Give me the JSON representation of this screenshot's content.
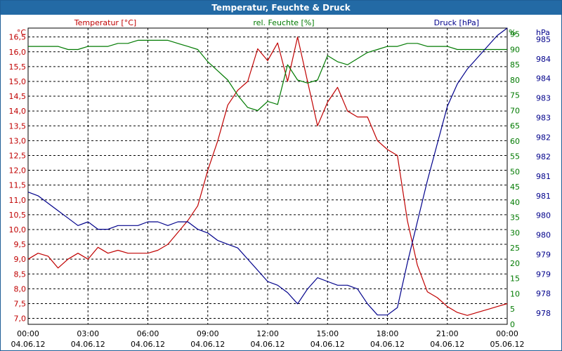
{
  "window": {
    "title": "Temperatur, Feuchte & Druck"
  },
  "colors": {
    "temperature": "#c00000",
    "humidity": "#007a00",
    "pressure": "#00008b",
    "titlebar": "#236aa5"
  },
  "chart_data": {
    "type": "line",
    "title": "Temperatur, Feuchte & Druck",
    "legend": [
      "Temperatur [°C]",
      "rel. Feuchte [%]",
      "Druck [hPa]"
    ],
    "x_ticks": [
      {
        "time": "00:00",
        "date": "04.06.12"
      },
      {
        "time": "03:00",
        "date": "04.06.12"
      },
      {
        "time": "06:00",
        "date": "04.06.12"
      },
      {
        "time": "09:00",
        "date": "04.06.12"
      },
      {
        "time": "12:00",
        "date": "04.06.12"
      },
      {
        "time": "15:00",
        "date": "04.06.12"
      },
      {
        "time": "18:00",
        "date": "04.06.12"
      },
      {
        "time": "21:00",
        "date": "04.06.12"
      },
      {
        "time": "00:00",
        "date": "05.06.12"
      }
    ],
    "x_range_hours": [
      0,
      24
    ],
    "axes": {
      "temperature": {
        "unit": "°C",
        "range": [
          6.8,
          16.8
        ],
        "ticks": [
          "7,0",
          "7,5",
          "8,0",
          "8,5",
          "9,0",
          "9,5",
          "10,0",
          "10,5",
          "11,0",
          "11,5",
          "12,0",
          "12,5",
          "13,0",
          "13,5",
          "14,0",
          "14,5",
          "15,0",
          "15,5",
          "16,0",
          "16,5"
        ]
      },
      "humidity": {
        "unit": "%",
        "range": [
          0,
          97
        ],
        "ticks": [
          "0",
          "5",
          "10",
          "15",
          "20",
          "25",
          "30",
          "35",
          "40",
          "45",
          "50",
          "55",
          "60",
          "65",
          "70",
          "75",
          "80",
          "85",
          "90",
          "95"
        ]
      },
      "pressure": {
        "unit": "hPa",
        "range": [
          977.55,
          985.5
        ],
        "ticks": [
          "978",
          "978",
          "979",
          "979",
          "980",
          "980",
          "981",
          "981",
          "982",
          "982",
          "983",
          "983",
          "984",
          "984",
          "985"
        ]
      }
    },
    "series": [
      {
        "name": "Temperatur [°C]",
        "axis": "temperature",
        "x": [
          0,
          0.5,
          1,
          1.5,
          2,
          2.5,
          3,
          3.5,
          4,
          4.5,
          5,
          5.5,
          6,
          6.5,
          7,
          7.5,
          8,
          8.5,
          9,
          9.5,
          10,
          10.5,
          11,
          11.5,
          12,
          12.5,
          13,
          13.5,
          14,
          14.5,
          15,
          15.5,
          16,
          16.5,
          17,
          17.5,
          18,
          18.5,
          19,
          19.5,
          20,
          20.5,
          21,
          21.5,
          22,
          22.5,
          23,
          23.5,
          24
        ],
        "values": [
          9.0,
          9.2,
          9.1,
          8.7,
          9.0,
          9.2,
          9.0,
          9.4,
          9.2,
          9.3,
          9.2,
          9.2,
          9.2,
          9.3,
          9.5,
          9.9,
          10.3,
          10.8,
          12.0,
          13.0,
          14.2,
          14.7,
          15.0,
          16.1,
          15.7,
          16.3,
          15.0,
          16.5,
          15.0,
          13.5,
          14.3,
          14.8,
          14.0,
          13.8,
          13.8,
          13.0,
          12.7,
          12.5,
          10.3,
          8.8,
          7.9,
          7.7,
          7.4,
          7.2,
          7.1,
          7.2,
          7.3,
          7.4,
          7.5
        ]
      },
      {
        "name": "rel. Feuchte [%]",
        "axis": "humidity",
        "x": [
          0,
          0.5,
          1,
          1.5,
          2,
          2.5,
          3,
          3.5,
          4,
          4.5,
          5,
          5.5,
          6,
          6.5,
          7,
          7.5,
          8,
          8.5,
          9,
          9.5,
          10,
          10.5,
          11,
          11.5,
          12,
          12.5,
          13,
          13.5,
          14,
          14.5,
          15,
          15.5,
          16,
          16.5,
          17,
          17.5,
          18,
          18.5,
          19,
          19.5,
          20,
          20.5,
          21,
          21.5,
          22,
          22.5,
          23,
          23.5,
          24
        ],
        "values": [
          91,
          91,
          91,
          91,
          90,
          90,
          91,
          91,
          91,
          92,
          92,
          93,
          93,
          93,
          93,
          92,
          91,
          90,
          86,
          83,
          80,
          75,
          71,
          70,
          73,
          72,
          85,
          80,
          79,
          80,
          88,
          86,
          85,
          87,
          89,
          90,
          91,
          91,
          92,
          92,
          91,
          91,
          91,
          90,
          90,
          90,
          90,
          90,
          90
        ]
      },
      {
        "name": "Druck [hPa]",
        "axis": "pressure",
        "x": [
          0,
          0.5,
          1,
          1.5,
          2,
          2.5,
          3,
          3.5,
          4,
          4.5,
          5,
          5.5,
          6,
          6.5,
          7,
          7.5,
          8,
          8.5,
          9,
          9.5,
          10,
          10.5,
          11,
          11.5,
          12,
          12.5,
          13,
          13.5,
          14,
          14.5,
          15,
          15.5,
          16,
          16.5,
          17,
          17.5,
          18,
          18.5,
          19,
          19.5,
          20,
          20.5,
          21,
          21.5,
          22,
          22.5,
          23,
          23.5,
          24
        ],
        "values": [
          981.1,
          981.0,
          980.8,
          980.6,
          980.4,
          980.2,
          980.3,
          980.1,
          980.1,
          980.2,
          980.2,
          980.2,
          980.3,
          980.3,
          980.2,
          980.3,
          980.3,
          980.1,
          980.0,
          979.8,
          979.7,
          979.6,
          979.3,
          979.0,
          978.7,
          978.6,
          978.4,
          978.1,
          978.5,
          978.8,
          978.7,
          978.6,
          978.6,
          978.5,
          978.1,
          977.8,
          977.8,
          978.0,
          979.2,
          980.3,
          981.4,
          982.4,
          983.4,
          984.0,
          984.4,
          984.7,
          985.0,
          985.3,
          985.5
        ]
      }
    ]
  }
}
